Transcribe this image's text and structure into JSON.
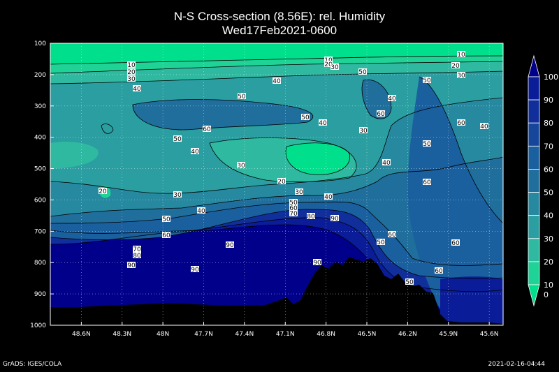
{
  "chart_data": {
    "type": "contour",
    "title": "N-S Cross-section (8.56E): rel. Humidity",
    "subtitle": "Wed17Feb2021-0600",
    "x_ticks": [
      "48.6N",
      "48.3N",
      "48N",
      "47.7N",
      "47.4N",
      "47.1N",
      "46.8N",
      "46.5N",
      "46.2N",
      "45.9N",
      "45.6N"
    ],
    "y_ticks": [
      "100",
      "200",
      "300",
      "400",
      "500",
      "600",
      "700",
      "800",
      "900",
      "1000"
    ],
    "ylim": [
      1000,
      100
    ],
    "colorbar": {
      "labels": [
        "0",
        "10",
        "20",
        "30",
        "40",
        "50",
        "60",
        "70",
        "80",
        "90",
        "100"
      ],
      "colors": [
        "#00e08c",
        "#1fd397",
        "#2fb9a0",
        "#2a9ea0",
        "#26899f",
        "#1f6e9c",
        "#1a5f9e",
        "#16469c",
        "#102f9a",
        "#0a1c98",
        "#00008b"
      ]
    },
    "contour_labels": [
      {
        "t": "10",
        "x": 188,
        "y": 93
      },
      {
        "t": "20",
        "x": 188,
        "y": 103
      },
      {
        "t": "30",
        "x": 188,
        "y": 113
      },
      {
        "t": "40",
        "x": 196,
        "y": 127
      },
      {
        "t": "40",
        "x": 396,
        "y": 116
      },
      {
        "t": "50",
        "x": 346,
        "y": 138
      },
      {
        "t": "60",
        "x": 296,
        "y": 185
      },
      {
        "t": "50",
        "x": 254,
        "y": 199
      },
      {
        "t": "40",
        "x": 279,
        "y": 217
      },
      {
        "t": "30",
        "x": 345,
        "y": 237
      },
      {
        "t": "20",
        "x": 147,
        "y": 274
      },
      {
        "t": "30",
        "x": 254,
        "y": 279
      },
      {
        "t": "40",
        "x": 288,
        "y": 302
      },
      {
        "t": "50",
        "x": 238,
        "y": 314
      },
      {
        "t": "60",
        "x": 238,
        "y": 337
      },
      {
        "t": "70",
        "x": 196,
        "y": 357
      },
      {
        "t": "80",
        "x": 196,
        "y": 366
      },
      {
        "t": "90",
        "x": 188,
        "y": 380
      },
      {
        "t": "90",
        "x": 329,
        "y": 351
      },
      {
        "t": "90",
        "x": 279,
        "y": 386
      },
      {
        "t": "10",
        "x": 470,
        "y": 86
      },
      {
        "t": "20",
        "x": 470,
        "y": 92
      },
      {
        "t": "30",
        "x": 479,
        "y": 96
      },
      {
        "t": "50",
        "x": 519,
        "y": 103
      },
      {
        "t": "50",
        "x": 437,
        "y": 168
      },
      {
        "t": "40",
        "x": 462,
        "y": 176
      },
      {
        "t": "60",
        "x": 545,
        "y": 163
      },
      {
        "t": "40",
        "x": 561,
        "y": 141
      },
      {
        "t": "30",
        "x": 520,
        "y": 187
      },
      {
        "t": "20",
        "x": 403,
        "y": 260
      },
      {
        "t": "30",
        "x": 428,
        "y": 275
      },
      {
        "t": "40",
        "x": 470,
        "y": 282
      },
      {
        "t": "50",
        "x": 420,
        "y": 290
      },
      {
        "t": "60",
        "x": 420,
        "y": 298
      },
      {
        "t": "70",
        "x": 420,
        "y": 306
      },
      {
        "t": "80",
        "x": 445,
        "y": 310
      },
      {
        "t": "90",
        "x": 479,
        "y": 313
      },
      {
        "t": "90",
        "x": 454,
        "y": 376
      },
      {
        "t": "40",
        "x": 553,
        "y": 233
      },
      {
        "t": "50",
        "x": 545,
        "y": 347
      },
      {
        "t": "60",
        "x": 561,
        "y": 336
      },
      {
        "t": "50",
        "x": 586,
        "y": 404
      },
      {
        "t": "60",
        "x": 628,
        "y": 388
      },
      {
        "t": "60",
        "x": 652,
        "y": 348
      },
      {
        "t": "60",
        "x": 611,
        "y": 261
      },
      {
        "t": "50",
        "x": 611,
        "y": 206
      },
      {
        "t": "50",
        "x": 611,
        "y": 115
      },
      {
        "t": "10",
        "x": 660,
        "y": 78
      },
      {
        "t": "20",
        "x": 652,
        "y": 94
      },
      {
        "t": "30",
        "x": 660,
        "y": 108
      },
      {
        "t": "60",
        "x": 660,
        "y": 176
      },
      {
        "t": "40",
        "x": 693,
        "y": 181
      }
    ]
  },
  "footer": {
    "left": "GrADS: IGES/COLA",
    "right": "2021-02-16-04:44"
  }
}
